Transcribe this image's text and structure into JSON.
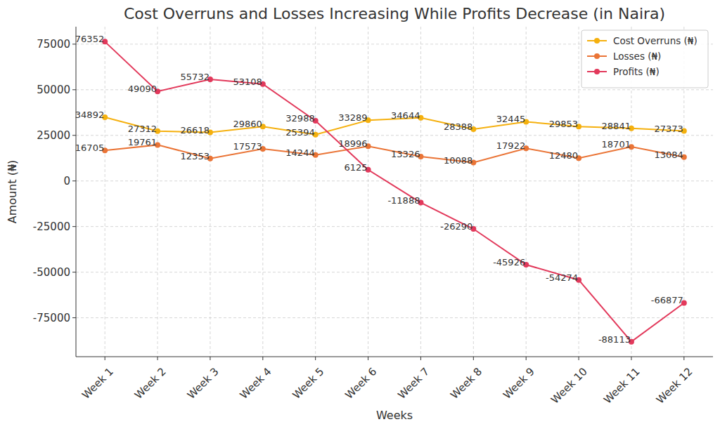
{
  "chart_data": {
    "type": "line",
    "title": "Cost Overruns and Losses Increasing While Profits Decrease (in Naira)",
    "x_label": "Weeks",
    "y_label": "Amount (₦)",
    "categories": [
      "Week 1",
      "Week 2",
      "Week 3",
      "Week 4",
      "Week 5",
      "Week 6",
      "Week 7",
      "Week 8",
      "Week 9",
      "Week 10",
      "Week 11",
      "Week 12"
    ],
    "series": [
      {
        "name": "Cost Overruns (₦)",
        "color": "#f5b00e",
        "values": [
          34892,
          27312,
          26618,
          29860,
          25394,
          33289,
          34644,
          28388,
          32445,
          29853,
          28841,
          27373
        ]
      },
      {
        "name": "Losses (₦)",
        "color": "#ea7436",
        "values": [
          16705,
          19761,
          12353,
          17573,
          14244,
          18996,
          13326,
          10088,
          17922,
          12480,
          18701,
          13084
        ]
      },
      {
        "name": "Profits (₦)",
        "color": "#e2395b",
        "values": [
          76352,
          49090,
          55732,
          53108,
          32988,
          6125,
          -11888,
          -26290,
          -45926,
          -54274,
          -88113,
          -66877
        ]
      }
    ],
    "ylim": [
      -96336,
      84575
    ],
    "yticks": [
      -75000,
      -50000,
      -25000,
      0,
      25000,
      50000,
      75000
    ],
    "grid": true,
    "legend": "upper right",
    "data_labels": true,
    "marker": "circle"
  }
}
